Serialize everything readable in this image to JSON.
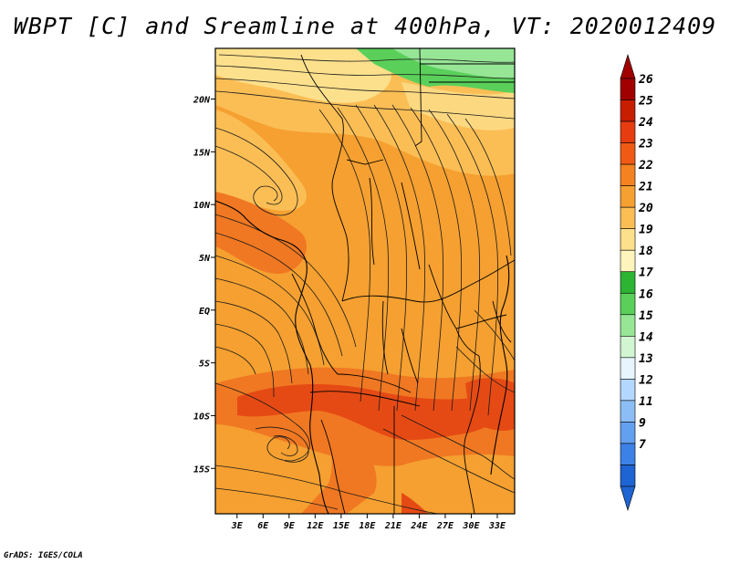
{
  "title": "WBPT [C] and Sreamline at 400hPa, VT: 2020012409",
  "credit": "GrADS: IGES/COLA",
  "map": {
    "lon_labels": [
      "3E",
      "6E",
      "9E",
      "12E",
      "15E",
      "18E",
      "21E",
      "24E",
      "27E",
      "30E",
      "33E"
    ],
    "lon_values": [
      3,
      6,
      9,
      12,
      15,
      18,
      21,
      24,
      27,
      30,
      33
    ],
    "lat_labels": [
      "20N",
      "15N",
      "10N",
      "5N",
      "EQ",
      "5S",
      "10S",
      "15S"
    ],
    "lat_values": [
      20,
      15,
      10,
      5,
      0,
      -5,
      -10,
      -15
    ],
    "lon_range": [
      0.5,
      35
    ],
    "lat_range": [
      -19.3,
      24.8
    ]
  },
  "colorbar": {
    "levels": [
      "26",
      "25",
      "24",
      "23",
      "22",
      "21",
      "20",
      "19",
      "18",
      "17",
      "16",
      "15",
      "14",
      "13",
      "12",
      "11",
      "9",
      "7"
    ],
    "colors": [
      "#a00000",
      "#c81e00",
      "#e63c10",
      "#f05a14",
      "#f58220",
      "#f7a032",
      "#fbbe55",
      "#fde08c",
      "#fff5bc",
      "#2db432",
      "#5ad05a",
      "#96e696",
      "#d2f5d2",
      "#e6f5ff",
      "#b4d7ff",
      "#8cbef5",
      "#64a0f0",
      "#3c82e6",
      "#1e64d2"
    ]
  },
  "colors": {
    "field_main": "#f5a030",
    "field_warm": "#f07822",
    "field_hot": "#e64a14",
    "field_cool": "#fbbe55",
    "field_pale": "#fde08c",
    "field_green": "#5ad05a",
    "field_green_light": "#96e696"
  }
}
